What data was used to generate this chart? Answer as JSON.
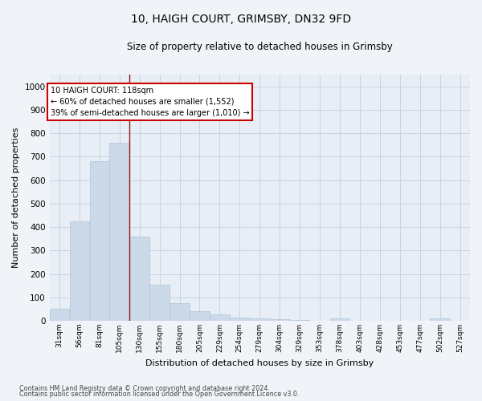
{
  "title1": "10, HAIGH COURT, GRIMSBY, DN32 9FD",
  "title2": "Size of property relative to detached houses in Grimsby",
  "xlabel": "Distribution of detached houses by size in Grimsby",
  "ylabel": "Number of detached properties",
  "footer1": "Contains HM Land Registry data © Crown copyright and database right 2024.",
  "footer2": "Contains public sector information licensed under the Open Government Licence v3.0.",
  "annotation_title": "10 HAIGH COURT: 118sqm",
  "annotation_line2": "← 60% of detached houses are smaller (1,552)",
  "annotation_line3": "39% of semi-detached houses are larger (1,010) →",
  "bar_color": "#ccd9e8",
  "bar_edge_color": "#afc4d8",
  "red_line_color": "#8b1a1a",
  "red_line_x": 118,
  "categories": [
    "31sqm",
    "56sqm",
    "81sqm",
    "105sqm",
    "130sqm",
    "155sqm",
    "180sqm",
    "205sqm",
    "229sqm",
    "254sqm",
    "279sqm",
    "304sqm",
    "329sqm",
    "353sqm",
    "378sqm",
    "403sqm",
    "428sqm",
    "453sqm",
    "477sqm",
    "502sqm",
    "527sqm"
  ],
  "bin_edges": [
    18.5,
    43.5,
    68.5,
    93.5,
    118.5,
    143.5,
    168.5,
    193.5,
    218.5,
    243.5,
    268.5,
    293.5,
    318.5,
    343.5,
    368.5,
    393.5,
    418.5,
    443.5,
    468.5,
    493.5,
    518.5,
    543.5
  ],
  "values": [
    50,
    425,
    680,
    760,
    360,
    155,
    75,
    40,
    28,
    15,
    10,
    8,
    5,
    0,
    10,
    0,
    0,
    0,
    0,
    10,
    0
  ],
  "ylim": [
    0,
    1050
  ],
  "yticks": [
    0,
    100,
    200,
    300,
    400,
    500,
    600,
    700,
    800,
    900,
    1000
  ],
  "figure_bg": "#f0f4f8",
  "axes_bg": "#e8eef5",
  "grid_color": "#c8d4e0",
  "title1_fontsize": 10,
  "title2_fontsize": 9
}
